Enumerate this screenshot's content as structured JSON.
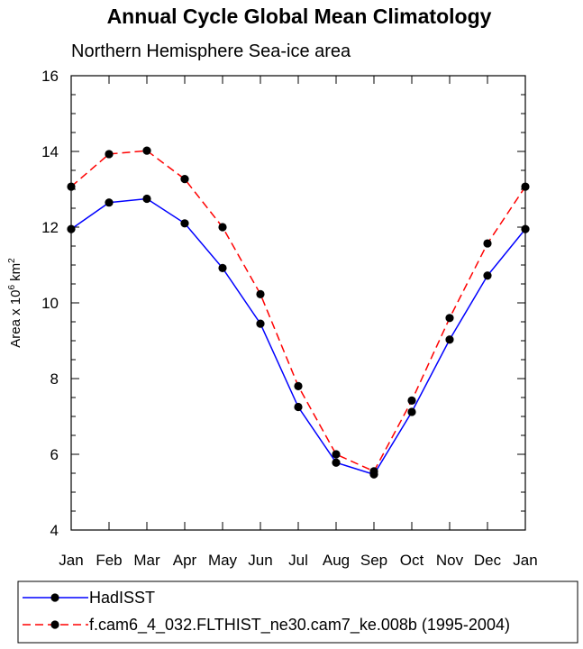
{
  "chart_data": {
    "type": "line",
    "title": "Annual Cycle Global Mean Climatology",
    "subtitle": "Northern Hemisphere Sea-ice area",
    "ylabel_main": "Area x 10",
    "ylabel_exp1": "6",
    "ylabel_unit": " km",
    "ylabel_exp2": "2",
    "ylim": [
      4,
      16
    ],
    "yticks": [
      4,
      6,
      8,
      10,
      12,
      14,
      16
    ],
    "categories": [
      "Jan",
      "Feb",
      "Mar",
      "Apr",
      "May",
      "Jun",
      "Jul",
      "Aug",
      "Sep",
      "Oct",
      "Nov",
      "Dec",
      "Jan"
    ],
    "grid": false,
    "legend_position": "bottom",
    "series": [
      {
        "name": "HadISST",
        "color": "#0000ff",
        "dashed": false,
        "values": [
          11.95,
          12.65,
          12.75,
          12.1,
          10.92,
          9.45,
          7.25,
          5.78,
          5.47,
          7.12,
          9.03,
          10.72,
          11.95
        ]
      },
      {
        "name": "f.cam6_4_032.FLTHIST_ne30.cam7_ke.008b (1995-2004)",
        "color": "#ff0000",
        "dashed": true,
        "values": [
          13.07,
          13.93,
          14.02,
          13.27,
          12.0,
          10.23,
          7.8,
          6.0,
          5.55,
          7.42,
          9.6,
          11.57,
          13.07
        ]
      }
    ]
  }
}
